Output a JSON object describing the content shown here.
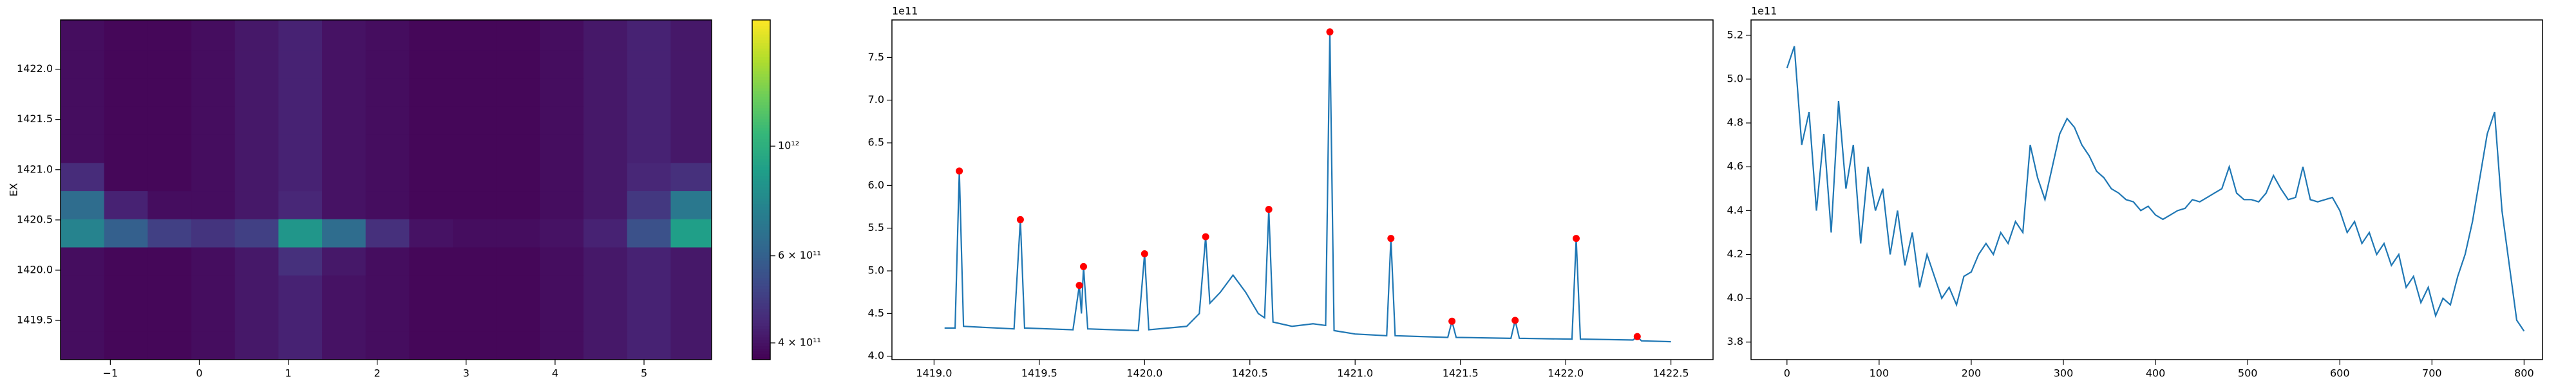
{
  "chart_data": [
    {
      "type": "heatmap",
      "ylabel": "EX",
      "colormap": "viridis",
      "xlim": [
        -1.56,
        5.76
      ],
      "ylim": [
        1419.11,
        1422.49
      ],
      "xticks": [
        {
          "value": -1,
          "label": "−1"
        },
        0,
        1,
        2,
        3,
        4,
        5
      ],
      "yticks": [
        1419.5,
        {
          "value": 1420,
          "label": "1420.0"
        },
        1420.5,
        {
          "value": 1421,
          "label": "1421.0"
        },
        1421.5,
        {
          "value": 1422,
          "label": "1422.0"
        }
      ],
      "xbins": [
        -1.56,
        -1.07,
        -0.58,
        -0.09,
        0.4,
        0.89,
        1.38,
        1.87,
        2.36,
        2.85,
        3.34,
        3.83,
        4.32,
        4.81,
        5.3,
        5.76
      ],
      "ybins": [
        1419.11,
        1419.39,
        1419.67,
        1419.95,
        1420.23,
        1420.51,
        1420.79,
        1421.07,
        1421.35,
        1421.63,
        1421.91,
        1422.19,
        1422.49
      ],
      "values": [
        [
          390000000000.0,
          380000000000.0,
          380000000000.0,
          390000000000.0,
          410000000000.0,
          430000000000.0,
          400000000000.0,
          390000000000.0,
          380000000000.0,
          380000000000.0,
          380000000000.0,
          390000000000.0,
          410000000000.0,
          430000000000.0,
          410000000000.0
        ],
        [
          390000000000.0,
          380000000000.0,
          380000000000.0,
          390000000000.0,
          410000000000.0,
          430000000000.0,
          400000000000.0,
          390000000000.0,
          380000000000.0,
          380000000000.0,
          380000000000.0,
          390000000000.0,
          410000000000.0,
          430000000000.0,
          410000000000.0
        ],
        [
          390000000000.0,
          380000000000.0,
          380000000000.0,
          390000000000.0,
          410000000000.0,
          430000000000.0,
          400000000000.0,
          390000000000.0,
          380000000000.0,
          380000000000.0,
          380000000000.0,
          390000000000.0,
          410000000000.0,
          430000000000.0,
          410000000000.0
        ],
        [
          390000000000.0,
          380000000000.0,
          380000000000.0,
          390000000000.0,
          410000000000.0,
          460000000000.0,
          410000000000.0,
          390000000000.0,
          380000000000.0,
          380000000000.0,
          380000000000.0,
          390000000000.0,
          410000000000.0,
          430000000000.0,
          410000000000.0
        ],
        [
          750000000000.0,
          600000000000.0,
          500000000000.0,
          470000000000.0,
          500000000000.0,
          850000000000.0,
          650000000000.0,
          460000000000.0,
          400000000000.0,
          390000000000.0,
          390000000000.0,
          400000000000.0,
          430000000000.0,
          550000000000.0,
          900000000000.0
        ],
        [
          650000000000.0,
          430000000000.0,
          390000000000.0,
          390000000000.0,
          410000000000.0,
          440000000000.0,
          400000000000.0,
          390000000000.0,
          380000000000.0,
          380000000000.0,
          380000000000.0,
          390000000000.0,
          410000000000.0,
          480000000000.0,
          700000000000.0
        ],
        [
          450000000000.0,
          380000000000.0,
          380000000000.0,
          390000000000.0,
          410000000000.0,
          430000000000.0,
          400000000000.0,
          390000000000.0,
          380000000000.0,
          380000000000.0,
          380000000000.0,
          390000000000.0,
          410000000000.0,
          440000000000.0,
          460000000000.0
        ],
        [
          390000000000.0,
          380000000000.0,
          380000000000.0,
          390000000000.0,
          410000000000.0,
          430000000000.0,
          400000000000.0,
          390000000000.0,
          380000000000.0,
          380000000000.0,
          380000000000.0,
          390000000000.0,
          410000000000.0,
          430000000000.0,
          410000000000.0
        ],
        [
          390000000000.0,
          380000000000.0,
          380000000000.0,
          390000000000.0,
          410000000000.0,
          430000000000.0,
          400000000000.0,
          390000000000.0,
          380000000000.0,
          380000000000.0,
          380000000000.0,
          390000000000.0,
          410000000000.0,
          430000000000.0,
          410000000000.0
        ],
        [
          390000000000.0,
          380000000000.0,
          380000000000.0,
          390000000000.0,
          410000000000.0,
          430000000000.0,
          400000000000.0,
          390000000000.0,
          380000000000.0,
          380000000000.0,
          380000000000.0,
          390000000000.0,
          410000000000.0,
          430000000000.0,
          410000000000.0
        ],
        [
          390000000000.0,
          380000000000.0,
          380000000000.0,
          390000000000.0,
          410000000000.0,
          430000000000.0,
          400000000000.0,
          390000000000.0,
          380000000000.0,
          380000000000.0,
          380000000000.0,
          390000000000.0,
          410000000000.0,
          430000000000.0,
          410000000000.0
        ],
        [
          390000000000.0,
          380000000000.0,
          380000000000.0,
          390000000000.0,
          410000000000.0,
          430000000000.0,
          400000000000.0,
          390000000000.0,
          380000000000.0,
          380000000000.0,
          380000000000.0,
          390000000000.0,
          410000000000.0,
          430000000000.0,
          410000000000.0
        ]
      ],
      "colorbar": {
        "scale": "log",
        "lim": [
          370000000000.0,
          1800000000000.0
        ],
        "ticks": [
          {
            "value": 400000000000.0,
            "label": "4 × 10¹¹"
          },
          {
            "value": 600000000000.0,
            "label": "6 × 10¹¹"
          },
          {
            "value": 1000000000000.0,
            "label": "10¹²"
          }
        ]
      }
    },
    {
      "type": "line",
      "offset_label": "1e11",
      "xlim": [
        1418.8,
        1422.7
      ],
      "ylim": [
        3.96,
        7.94
      ],
      "xticks": [
        {
          "value": 1419,
          "label": "1419.0"
        },
        1419.5,
        {
          "value": 1420,
          "label": "1420.0"
        },
        1420.5,
        {
          "value": 1421,
          "label": "1421.0"
        },
        1421.5,
        {
          "value": 1422,
          "label": "1422.0"
        },
        1422.5
      ],
      "yticks": [
        {
          "value": 4,
          "label": "4.0"
        },
        4.5,
        {
          "value": 5,
          "label": "5.0"
        },
        5.5,
        {
          "value": 6,
          "label": "6.0"
        },
        6.5,
        {
          "value": 7,
          "label": "7.0"
        },
        7.5
      ],
      "series": [
        {
          "style": "line",
          "color": "#1f77b4",
          "x": [
            1419.05,
            1419.1,
            1419.12,
            1419.14,
            1419.38,
            1419.41,
            1419.43,
            1419.66,
            1419.69,
            1419.7,
            1419.71,
            1419.73,
            1419.97,
            1420.0,
            1420.02,
            1420.2,
            1420.26,
            1420.29,
            1420.31,
            1420.36,
            1420.42,
            1420.48,
            1420.54,
            1420.57,
            1420.59,
            1420.61,
            1420.7,
            1420.8,
            1420.86,
            1420.88,
            1420.9,
            1421.0,
            1421.15,
            1421.17,
            1421.19,
            1421.44,
            1421.46,
            1421.48,
            1421.74,
            1421.76,
            1421.78,
            1422.03,
            1422.05,
            1422.07,
            1422.32,
            1422.34,
            1422.36,
            1422.5
          ],
          "values": [
            4.33,
            4.33,
            6.17,
            4.35,
            4.32,
            5.6,
            4.33,
            4.31,
            4.83,
            4.5,
            5.05,
            4.32,
            4.3,
            5.2,
            4.31,
            4.35,
            4.5,
            5.4,
            4.62,
            4.75,
            4.95,
            4.75,
            4.5,
            4.45,
            5.72,
            4.4,
            4.35,
            4.38,
            4.36,
            7.8,
            4.3,
            4.26,
            4.24,
            5.38,
            4.24,
            4.22,
            4.41,
            4.22,
            4.21,
            4.42,
            4.21,
            4.2,
            5.38,
            4.2,
            4.19,
            4.23,
            4.18,
            4.17
          ]
        },
        {
          "style": "markers",
          "color": "#ff0000",
          "x": [
            1419.12,
            1419.41,
            1419.69,
            1419.71,
            1420.0,
            1420.29,
            1420.59,
            1420.88,
            1421.17,
            1421.46,
            1421.76,
            1422.05,
            1422.34
          ],
          "values": [
            6.17,
            5.6,
            4.83,
            5.05,
            5.2,
            5.4,
            5.72,
            7.8,
            5.38,
            4.41,
            4.42,
            5.38,
            4.23
          ]
        }
      ]
    },
    {
      "type": "line",
      "offset_label": "1e11",
      "xlim": [
        -39,
        820
      ],
      "ylim": [
        3.72,
        5.27
      ],
      "xticks": [
        0,
        100,
        200,
        300,
        400,
        500,
        600,
        700,
        800
      ],
      "yticks": [
        3.8,
        {
          "value": 4,
          "label": "4.0"
        },
        4.2,
        4.4,
        4.6,
        4.8,
        {
          "value": 5,
          "label": "5.0"
        },
        5.2
      ],
      "series": [
        {
          "style": "line",
          "color": "#1f77b4",
          "x": [
            0,
            8,
            16,
            24,
            32,
            40,
            48,
            56,
            64,
            72,
            80,
            88,
            96,
            104,
            112,
            120,
            128,
            136,
            144,
            152,
            160,
            168,
            176,
            184,
            192,
            200,
            208,
            216,
            224,
            232,
            240,
            248,
            256,
            264,
            272,
            280,
            288,
            296,
            304,
            312,
            320,
            328,
            336,
            344,
            352,
            360,
            368,
            376,
            384,
            392,
            400,
            408,
            416,
            424,
            432,
            440,
            448,
            456,
            464,
            472,
            480,
            488,
            496,
            504,
            512,
            520,
            528,
            536,
            544,
            552,
            560,
            568,
            576,
            584,
            592,
            600,
            608,
            616,
            624,
            632,
            640,
            648,
            656,
            664,
            672,
            680,
            688,
            696,
            704,
            712,
            720,
            728,
            736,
            744,
            752,
            760,
            768,
            776,
            784,
            792,
            800
          ],
          "values": [
            5.05,
            5.15,
            4.7,
            4.85,
            4.4,
            4.75,
            4.3,
            4.9,
            4.5,
            4.7,
            4.25,
            4.6,
            4.4,
            4.5,
            4.2,
            4.4,
            4.15,
            4.3,
            4.05,
            4.2,
            4.1,
            4.0,
            4.05,
            3.97,
            4.1,
            4.12,
            4.2,
            4.25,
            4.2,
            4.3,
            4.25,
            4.35,
            4.3,
            4.7,
            4.55,
            4.45,
            4.6,
            4.75,
            4.82,
            4.78,
            4.7,
            4.65,
            4.58,
            4.55,
            4.5,
            4.48,
            4.45,
            4.44,
            4.4,
            4.42,
            4.38,
            4.36,
            4.38,
            4.4,
            4.41,
            4.45,
            4.44,
            4.46,
            4.48,
            4.5,
            4.6,
            4.48,
            4.45,
            4.45,
            4.44,
            4.48,
            4.56,
            4.5,
            4.45,
            4.46,
            4.6,
            4.45,
            4.44,
            4.45,
            4.46,
            4.4,
            4.3,
            4.35,
            4.25,
            4.3,
            4.2,
            4.25,
            4.15,
            4.2,
            4.05,
            4.1,
            3.98,
            4.05,
            3.92,
            4.0,
            3.97,
            4.1,
            4.2,
            4.35,
            4.55,
            4.75,
            4.85,
            4.4,
            4.15,
            3.9,
            3.85
          ]
        }
      ]
    }
  ]
}
